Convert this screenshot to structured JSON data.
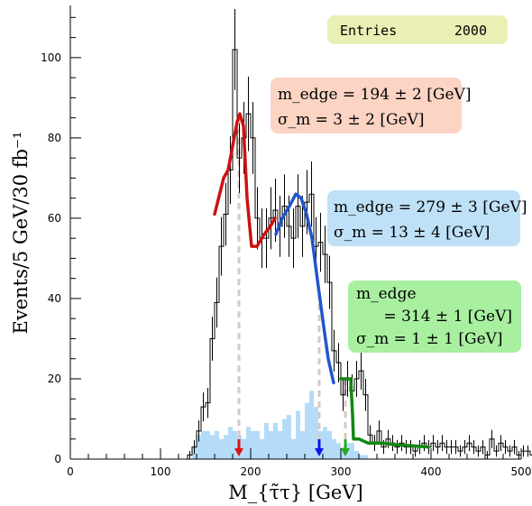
{
  "chart_data": {
    "type": "bar",
    "title": "",
    "xlabel": "M_{τ̃τ} [GeV]",
    "ylabel": "Events/5 GeV/30 fb⁻¹",
    "xlim": [
      0,
      500
    ],
    "ylim": [
      0,
      113
    ],
    "xticks": [
      0,
      100,
      200,
      300,
      400,
      500
    ],
    "yticks": [
      0,
      20,
      40,
      60,
      80,
      100
    ],
    "grid": false,
    "bin_width": 5,
    "stats_box": {
      "label": "Entries",
      "value": "2000",
      "bg": "#eaf0b4"
    },
    "series": [
      {
        "kind": "histogram-step",
        "color": "#000000",
        "x_start": 130,
        "values": [
          1,
          3,
          7,
          13,
          14,
          30,
          39,
          53,
          61,
          72,
          102,
          75,
          80,
          86,
          80,
          60,
          55,
          55,
          60,
          62,
          58,
          63,
          58,
          55,
          63,
          58,
          64,
          66,
          53,
          54,
          51,
          44,
          27,
          24,
          16,
          20,
          17,
          20,
          22,
          16,
          6,
          4,
          7,
          3,
          5,
          4,
          3,
          4,
          3,
          3,
          2,
          3,
          4,
          3,
          4,
          3,
          4,
          3,
          3,
          3,
          2,
          3,
          4,
          3,
          2,
          3,
          1,
          5,
          2,
          4,
          3,
          2,
          3,
          1,
          2,
          2,
          1,
          3,
          1,
          2,
          3,
          2,
          2,
          3,
          2,
          1,
          3,
          2,
          1,
          3,
          2,
          2,
          3,
          1,
          2,
          1,
          3,
          2
        ]
      },
      {
        "kind": "histogram-fill",
        "color": "#b4dcf8",
        "x_start": 135,
        "values": [
          3,
          6,
          7,
          7,
          6,
          7,
          5,
          6,
          8,
          7,
          6,
          5,
          8,
          7,
          7,
          5,
          9,
          7,
          9,
          7,
          10,
          11,
          5,
          12,
          7,
          14,
          17,
          13,
          7,
          8,
          7,
          5,
          4,
          3,
          4,
          4,
          2,
          1,
          1
        ]
      }
    ],
    "fits": [
      {
        "color": "#cc1111",
        "points": [
          [
            160,
            61
          ],
          [
            170,
            70
          ],
          [
            175,
            72
          ],
          [
            180,
            78
          ],
          [
            185,
            84
          ],
          [
            188,
            86
          ],
          [
            192,
            83
          ],
          [
            196,
            65
          ],
          [
            201,
            53
          ],
          [
            207,
            53
          ],
          [
            215,
            56
          ],
          [
            222,
            58
          ],
          [
            227,
            60
          ]
        ]
      },
      {
        "color": "#2255cc",
        "points": [
          [
            228,
            56
          ],
          [
            235,
            60
          ],
          [
            243,
            63
          ],
          [
            250,
            66
          ],
          [
            256,
            65
          ],
          [
            262,
            61
          ],
          [
            268,
            55
          ],
          [
            275,
            43
          ],
          [
            281,
            33
          ],
          [
            286,
            25
          ],
          [
            292,
            19
          ]
        ]
      },
      {
        "color": "#118811",
        "points": [
          [
            300,
            20
          ],
          [
            305,
            20
          ],
          [
            311,
            20
          ],
          [
            313,
            11
          ],
          [
            314,
            5
          ],
          [
            320,
            5
          ],
          [
            330,
            4
          ],
          [
            345,
            4
          ],
          [
            360,
            3.6
          ],
          [
            380,
            3.3
          ],
          [
            397,
            3.0
          ]
        ]
      }
    ],
    "edges": [
      {
        "x": 187,
        "color": "#dd1111"
      },
      {
        "x": 276,
        "color": "#1111ee"
      },
      {
        "x": 305,
        "color": "#22aa22"
      }
    ],
    "annotations": [
      {
        "lines": [
          "m_edge = 194 ± 2 [GeV]",
          "σ_m = 3 ± 2 [GeV]"
        ],
        "bg": "#fbd4c4"
      },
      {
        "lines": [
          "m_edge = 279 ± 3 [GeV]",
          "σ_m = 13 ± 4 [GeV]"
        ],
        "bg": "#bfe1f8"
      },
      {
        "lines": [
          "m_edge",
          "= 314 ± 1 [GeV]",
          "σ_m = 1 ± 1 [GeV]"
        ],
        "bg": "#a8f0a0"
      }
    ]
  }
}
